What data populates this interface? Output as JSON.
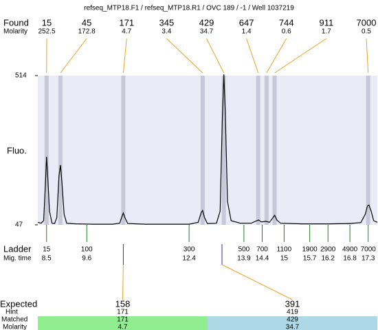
{
  "chart_data": {
    "type": "electropherogram",
    "title": "refseq_MTP18.F1 / refseq_MTP18.R1 / OVC 189 / -1 / Well 1037219",
    "y_label": "Fluo.",
    "ylim": [
      47,
      514
    ],
    "yticks": [
      47,
      514
    ],
    "xlim": [
      8.26,
      17.55
    ],
    "plot_color": "#ebebf8",
    "trace": {
      "color": "#000000",
      "x": [
        8.26,
        8.35,
        8.42,
        8.47,
        8.5,
        8.53,
        8.58,
        8.65,
        8.72,
        8.78,
        8.84,
        8.88,
        8.92,
        8.98,
        9.05,
        9.3,
        9.8,
        10.3,
        10.5,
        10.57,
        10.6,
        10.64,
        10.72,
        11.2,
        11.8,
        12.4,
        12.65,
        12.73,
        12.77,
        12.82,
        12.9,
        13.15,
        13.25,
        13.31,
        13.35,
        13.39,
        13.45,
        13.55,
        13.8,
        14.1,
        14.25,
        14.3,
        14.38,
        14.5,
        14.6,
        14.7,
        14.74,
        14.8,
        14.9,
        15.5,
        16.2,
        16.8,
        17.1,
        17.22,
        17.28,
        17.32,
        17.38,
        17.45,
        17.55
      ],
      "values": [
        55,
        52,
        60,
        180,
        260,
        200,
        90,
        52,
        51,
        70,
        200,
        234,
        180,
        80,
        52,
        50,
        49,
        49,
        52,
        75,
        84,
        70,
        51,
        49,
        49,
        49,
        55,
        85,
        92,
        70,
        51,
        52,
        90,
        380,
        518,
        400,
        120,
        60,
        52,
        52,
        60,
        62,
        56,
        58,
        55,
        70,
        77,
        62,
        52,
        50,
        50,
        51,
        54,
        80,
        106,
        109,
        90,
        60,
        55
      ]
    },
    "found": {
      "label": "Found",
      "molarity_label": "Molarity",
      "sizes": [
        15,
        45,
        171,
        345,
        429,
        647,
        744,
        911,
        7000
      ],
      "molarity": [
        252.5,
        172.8,
        4.7,
        3.4,
        34.7,
        1.4,
        0.6,
        1.7,
        0.5
      ],
      "x": [
        8.5,
        8.88,
        10.6,
        12.77,
        13.35,
        14.29,
        14.52,
        14.74,
        17.3
      ]
    },
    "ladder": {
      "label": "Ladder",
      "time_label": "Mig. time",
      "sizes": [
        15,
        100,
        300,
        500,
        700,
        1100,
        1900,
        2900,
        4900,
        7000
      ],
      "x": [
        8.5,
        9.6,
        12.4,
        13.9,
        14.4,
        15,
        15.7,
        16.2,
        16.8,
        17.3
      ]
    },
    "expected": {
      "label": "Expected",
      "hint_label": "Hint",
      "matched_label": "Matched",
      "molarity_label": "Molarity",
      "sizes": [
        158,
        391
      ],
      "hints": [
        171,
        419
      ],
      "matched": [
        171,
        429
      ],
      "molarity": [
        4.7,
        34.7
      ],
      "x": [
        10.6,
        13.3
      ],
      "colors": [
        "#90ee90",
        "#add8e6"
      ]
    }
  }
}
